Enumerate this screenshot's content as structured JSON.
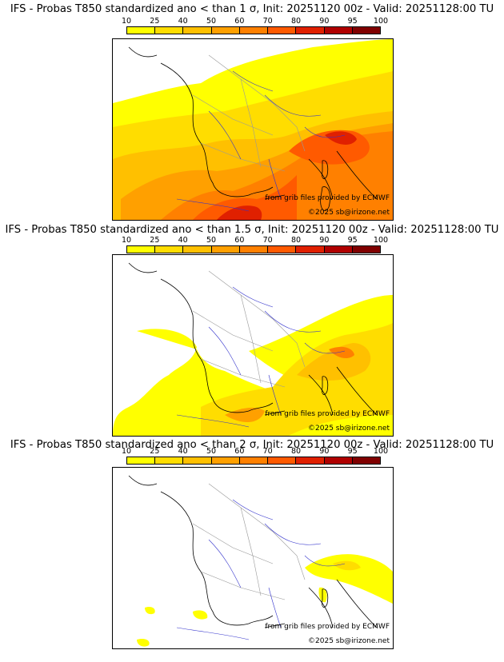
{
  "scale": {
    "labels": [
      "10",
      "25",
      "40",
      "50",
      "60",
      "70",
      "80",
      "90",
      "95",
      "100"
    ],
    "colors": [
      "#ffff00",
      "#ffdd00",
      "#ffc000",
      "#ffa000",
      "#ff8000",
      "#ff5a00",
      "#e02000",
      "#b00000",
      "#800000"
    ]
  },
  "panels": [
    {
      "title": "IFS - Probas T850  standardized ano < than 1 σ, Init: 20251120 00z - Valid: 20251128:00 TU",
      "credit_source": "from grib files provided by ECMWF",
      "credit_copyright": "©2025 sb@irizone.net"
    },
    {
      "title": "IFS - Probas T850  standardized ano < than 1.5 σ, Init: 20251120 00z - Valid: 20251128:00 TU",
      "credit_source": "from grib files provided by ECMWF",
      "credit_copyright": "©2025 sb@irizone.net"
    },
    {
      "title": "IFS - Probas T850  standardized ano < than 2 σ, Init: 20251120 00z - Valid: 20251128:00 TU",
      "credit_source": "from grib files provided by ECMWF",
      "credit_copyright": "©2025 sb@irizone.net"
    }
  ],
  "colors": {
    "coast": "#000000",
    "river": "#3333cc",
    "border": "#999999"
  }
}
